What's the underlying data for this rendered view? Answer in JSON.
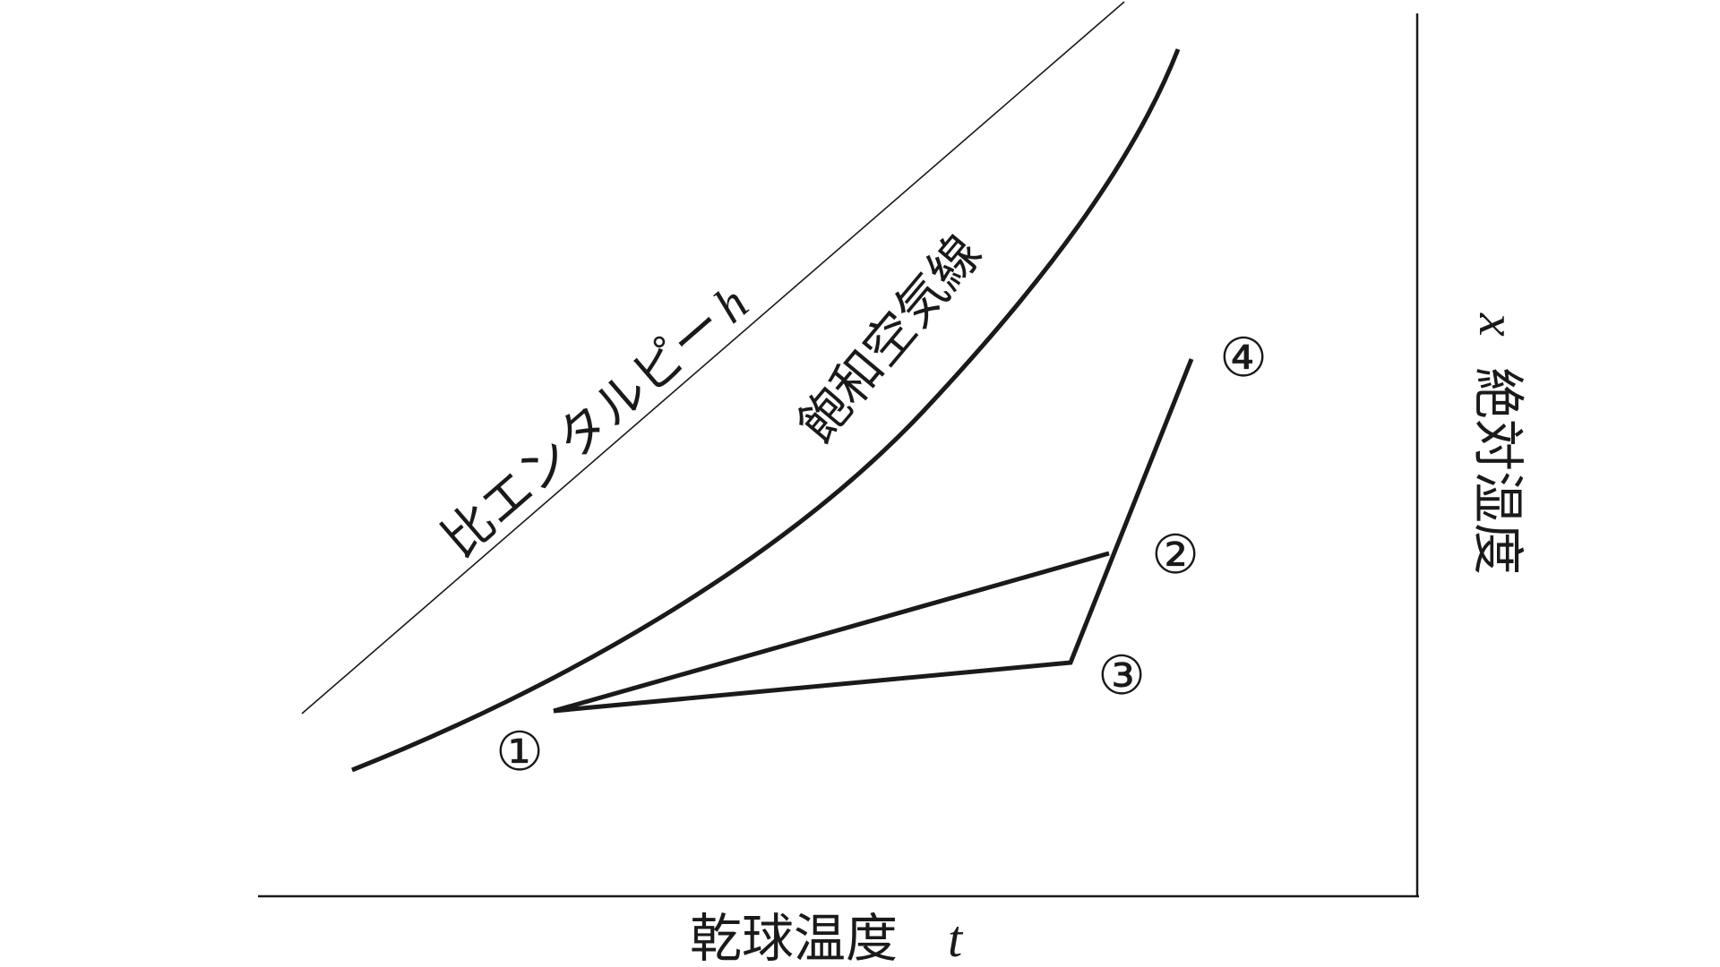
{
  "diagram": {
    "axes": {
      "x_label": "乾球温度",
      "x_symbol": "t",
      "y_label": "絶対湿度",
      "y_symbol": "x"
    },
    "curves": {
      "enthalpy_label": "比エンタルピー",
      "enthalpy_symbol": "h",
      "saturation_label": "飽和空気線"
    },
    "points": [
      {
        "id": "p1",
        "label": "①"
      },
      {
        "id": "p2",
        "label": "②"
      },
      {
        "id": "p3",
        "label": "③"
      },
      {
        "id": "p4",
        "label": "④"
      }
    ],
    "colors": {
      "line": "#1a1a1a",
      "background": "#ffffff"
    }
  }
}
